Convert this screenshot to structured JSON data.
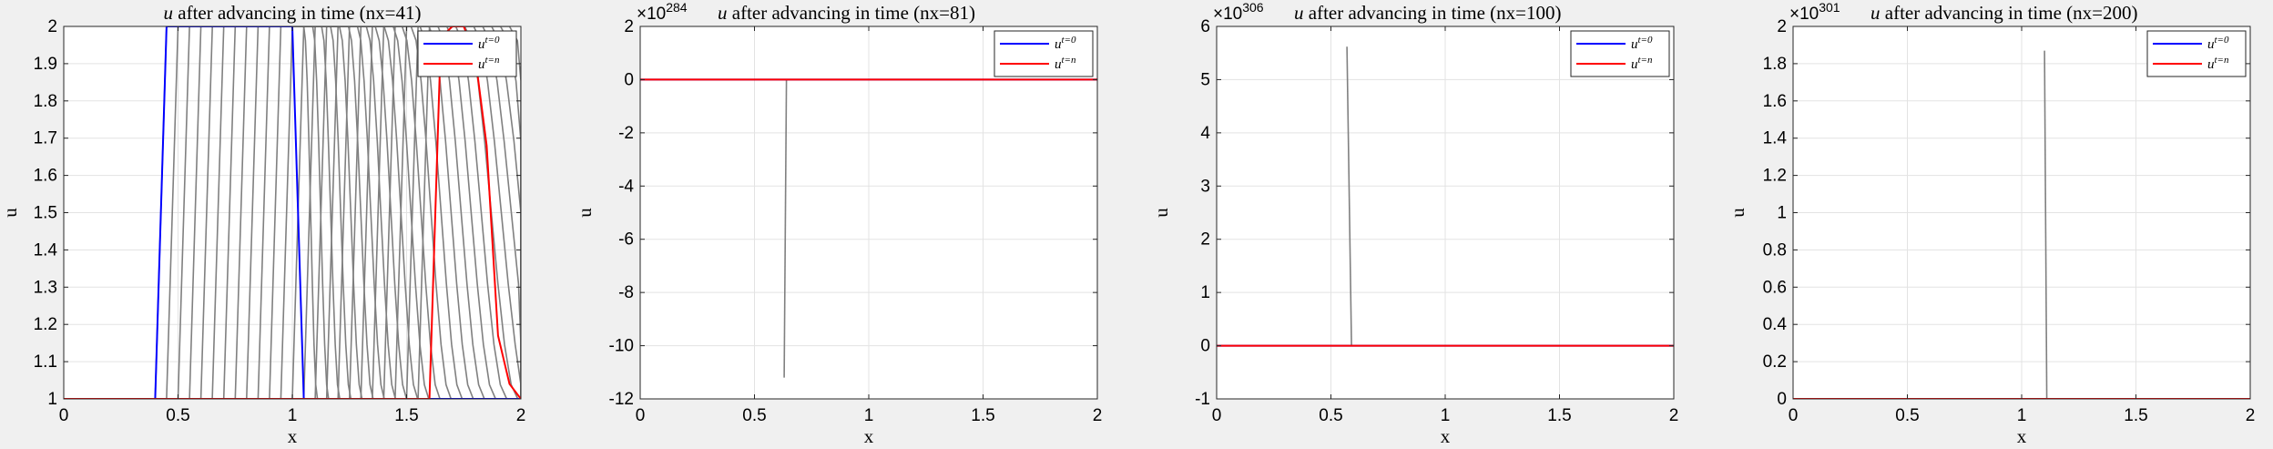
{
  "colors": {
    "initial": "#0000ff",
    "final": "#ff0000",
    "intermediate": "#808080",
    "grid": "#e3e3e3",
    "axes_bg": "#ffffff",
    "figure_bg": "#f0f0f0"
  },
  "chart_data": [
    {
      "type": "line",
      "title": "u after advancing in time (nx=41)",
      "xlabel": "x",
      "ylabel": "u",
      "xlim": [
        0,
        2
      ],
      "ylim": [
        1,
        2
      ],
      "xticks": [
        0,
        0.5,
        1,
        1.5,
        2
      ],
      "xtick_labels": [
        "0",
        "0.5",
        "1",
        "1.5",
        "2"
      ],
      "yticks": [
        1,
        1.1,
        1.2,
        1.3,
        1.4,
        1.5,
        1.6,
        1.7,
        1.8,
        1.9,
        2
      ],
      "ytick_labels": [
        "1",
        "1.1",
        "1.2",
        "1.3",
        "1.4",
        "1.5",
        "1.6",
        "1.7",
        "1.8",
        "1.9",
        "2"
      ],
      "exponent": "",
      "grid": true,
      "legend": {
        "location": "top-right",
        "entries": [
          "u^{t=0}",
          "u^{t=n}"
        ]
      },
      "series": [
        {
          "name": "u^{t=0}",
          "role": "initial",
          "x": [
            0,
            0.4,
            0.45,
            1.0,
            1.05,
            2
          ],
          "y": [
            1,
            1,
            2,
            2,
            1,
            1
          ]
        },
        {
          "name": "u^{t=n}",
          "role": "final",
          "x": [
            0,
            1.6,
            1.65,
            1.7,
            1.75,
            1.8,
            1.85,
            1.9,
            1.95,
            2
          ],
          "y": [
            1,
            1,
            1.97,
            2,
            2,
            1.92,
            1.68,
            1.17,
            1.04,
            1
          ]
        }
      ],
      "intermediate": {
        "count": 24,
        "left_start": [
          0.45,
          1.6
        ],
        "right_start": [
          1.05,
          1.95
        ],
        "spread_end": [
          0.06,
          0.28
        ]
      }
    },
    {
      "type": "line",
      "title": "u after advancing in time (nx=81)",
      "xlabel": "x",
      "ylabel": "u",
      "xlim": [
        0,
        2
      ],
      "ylim": [
        -12,
        2
      ],
      "xticks": [
        0,
        0.5,
        1,
        1.5,
        2
      ],
      "xtick_labels": [
        "0",
        "0.5",
        "1",
        "1.5",
        "2"
      ],
      "yticks": [
        -12,
        -10,
        -8,
        -6,
        -4,
        -2,
        0,
        2
      ],
      "ytick_labels": [
        "-12",
        "-10",
        "-8",
        "-6",
        "-4",
        "-2",
        "0",
        "2"
      ],
      "exponent": "284",
      "grid": true,
      "legend": {
        "location": "top-right",
        "entries": [
          "u^{t=0}",
          "u^{t=n}"
        ]
      },
      "series": [
        {
          "name": "u^{t=0}",
          "role": "initial",
          "x": [
            0,
            0.47,
            1.03,
            2
          ],
          "y": [
            0,
            0,
            0,
            0
          ]
        },
        {
          "name": "u^{t=n}",
          "role": "final",
          "x": [
            0,
            0.47,
            1.03,
            2
          ],
          "y": [
            0,
            0,
            0,
            0
          ]
        }
      ],
      "blowup": {
        "x": [
          0.64,
          0.63
        ],
        "y": [
          0,
          -11.2
        ]
      }
    },
    {
      "type": "line",
      "title": "u after advancing in time (nx=100)",
      "xlabel": "x",
      "ylabel": "u",
      "xlim": [
        0,
        2
      ],
      "ylim": [
        -1,
        6
      ],
      "xticks": [
        0,
        0.5,
        1,
        1.5,
        2
      ],
      "xtick_labels": [
        "0",
        "0.5",
        "1",
        "1.5",
        "2"
      ],
      "yticks": [
        -1,
        0,
        1,
        2,
        3,
        4,
        5,
        6
      ],
      "ytick_labels": [
        "-1",
        "0",
        "1",
        "2",
        "3",
        "4",
        "5",
        "6"
      ],
      "exponent": "306",
      "grid": true,
      "legend": {
        "location": "top-right",
        "entries": [
          "u^{t=0}",
          "u^{t=n}"
        ]
      },
      "series": [
        {
          "name": "u^{t=0}",
          "role": "initial",
          "x": [
            0,
            0.47,
            1.47,
            2
          ],
          "y": [
            0,
            0,
            0,
            0
          ]
        },
        {
          "name": "u^{t=n}",
          "role": "final",
          "x": [
            0,
            0.47,
            1.47,
            2
          ],
          "y": [
            0,
            0,
            0,
            0
          ]
        }
      ],
      "blowup": {
        "x": [
          0.57,
          0.59
        ],
        "y": [
          5.62,
          0
        ]
      }
    },
    {
      "type": "line",
      "title": "u after advancing in time (nx=200)",
      "xlabel": "x",
      "ylabel": "u",
      "xlim": [
        0,
        2
      ],
      "ylim": [
        0,
        2
      ],
      "xticks": [
        0,
        0.5,
        1,
        1.5,
        2
      ],
      "xtick_labels": [
        "0",
        "0.5",
        "1",
        "1.5",
        "2"
      ],
      "yticks": [
        0,
        0.2,
        0.4,
        0.6,
        0.8,
        1,
        1.2,
        1.4,
        1.6,
        1.8,
        2
      ],
      "ytick_labels": [
        "0",
        "0.2",
        "0.4",
        "0.6",
        "0.8",
        "1",
        "1.2",
        "1.4",
        "1.6",
        "1.8",
        "2"
      ],
      "exponent": "301",
      "grid": true,
      "legend": {
        "location": "top-right",
        "entries": [
          "u^{t=0}",
          "u^{t=n}"
        ]
      },
      "series": [
        {
          "name": "u^{t=0}",
          "role": "initial",
          "x": [
            0,
            0.5,
            0.72,
            1.0,
            1.25,
            2
          ],
          "y": [
            0,
            0,
            0,
            0,
            0,
            0
          ]
        },
        {
          "name": "u^{t=n}",
          "role": "final",
          "x": [
            0,
            0.5,
            0.72,
            1.0,
            1.25,
            2
          ],
          "y": [
            0,
            0,
            0,
            0,
            0,
            0
          ]
        }
      ],
      "blowup": {
        "x": [
          1.1,
          1.11
        ],
        "y": [
          1.87,
          0
        ]
      }
    }
  ]
}
